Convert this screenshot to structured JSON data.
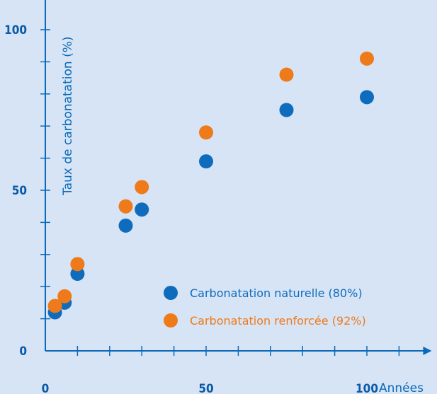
{
  "colors": {
    "background": "#d6e4f5",
    "axis": "#0a6ab8",
    "series_natural": "#0f6cbd",
    "series_reinforced": "#ee7a1a"
  },
  "chart_data": {
    "type": "scatter",
    "title": "",
    "xlabel": "Années",
    "ylabel": "Taux de carbonatation (%)",
    "xlim": [
      0,
      110
    ],
    "ylim": [
      0,
      115
    ],
    "x_ticks": [
      0,
      50,
      100
    ],
    "y_ticks": [
      0,
      50,
      100
    ],
    "legend_position": "bottom-right",
    "series": [
      {
        "name": "Carbonatation naturelle (80%)",
        "color": "#0f6cbd",
        "points": [
          {
            "x": 3,
            "y": 12
          },
          {
            "x": 6,
            "y": 15
          },
          {
            "x": 10,
            "y": 24
          },
          {
            "x": 25,
            "y": 39
          },
          {
            "x": 30,
            "y": 44
          },
          {
            "x": 50,
            "y": 59
          },
          {
            "x": 75,
            "y": 75
          },
          {
            "x": 100,
            "y": 79
          }
        ]
      },
      {
        "name": "Carbonatation renforcée (92%)",
        "color": "#ee7a1a",
        "points": [
          {
            "x": 3,
            "y": 14
          },
          {
            "x": 6,
            "y": 17
          },
          {
            "x": 10,
            "y": 27
          },
          {
            "x": 25,
            "y": 45
          },
          {
            "x": 30,
            "y": 51
          },
          {
            "x": 50,
            "y": 68
          },
          {
            "x": 75,
            "y": 86
          },
          {
            "x": 100,
            "y": 91
          }
        ]
      }
    ]
  }
}
